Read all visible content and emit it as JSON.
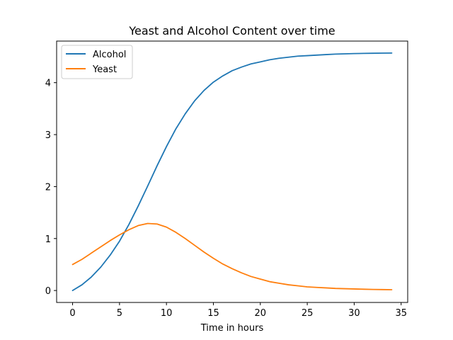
{
  "chart_data": {
    "type": "line",
    "title": "Yeast and Alcohol Content over time",
    "xlabel": "Time in hours",
    "ylabel": "",
    "xlim": [
      -1.7,
      35.7
    ],
    "ylim": [
      -0.23,
      4.8
    ],
    "xticks": [
      0,
      5,
      10,
      15,
      20,
      25,
      30,
      35
    ],
    "yticks": [
      0,
      1,
      2,
      3,
      4
    ],
    "grid": false,
    "legend_position": "top-left",
    "x": [
      0,
      1,
      2,
      3,
      4,
      5,
      6,
      7,
      8,
      9,
      10,
      11,
      12,
      13,
      14,
      15,
      16,
      17,
      18,
      19,
      20,
      21,
      22,
      23,
      24,
      25,
      26,
      27,
      28,
      29,
      30,
      31,
      32,
      33,
      34
    ],
    "series": [
      {
        "name": "Alcohol",
        "color": "#1f77b4",
        "values": [
          0.0,
          0.11,
          0.26,
          0.45,
          0.68,
          0.95,
          1.27,
          1.63,
          2.01,
          2.4,
          2.77,
          3.11,
          3.4,
          3.65,
          3.85,
          4.01,
          4.13,
          4.23,
          4.3,
          4.36,
          4.4,
          4.44,
          4.47,
          4.49,
          4.51,
          4.52,
          4.53,
          4.54,
          4.55,
          4.555,
          4.56,
          4.563,
          4.566,
          4.568,
          4.57
        ]
      },
      {
        "name": "Yeast",
        "color": "#ff7f0e",
        "values": [
          0.5,
          0.6,
          0.72,
          0.84,
          0.96,
          1.07,
          1.17,
          1.25,
          1.29,
          1.28,
          1.22,
          1.12,
          1.0,
          0.87,
          0.74,
          0.62,
          0.51,
          0.42,
          0.34,
          0.27,
          0.22,
          0.17,
          0.14,
          0.11,
          0.09,
          0.07,
          0.06,
          0.05,
          0.04,
          0.035,
          0.03,
          0.025,
          0.02,
          0.018,
          0.015
        ]
      }
    ]
  }
}
